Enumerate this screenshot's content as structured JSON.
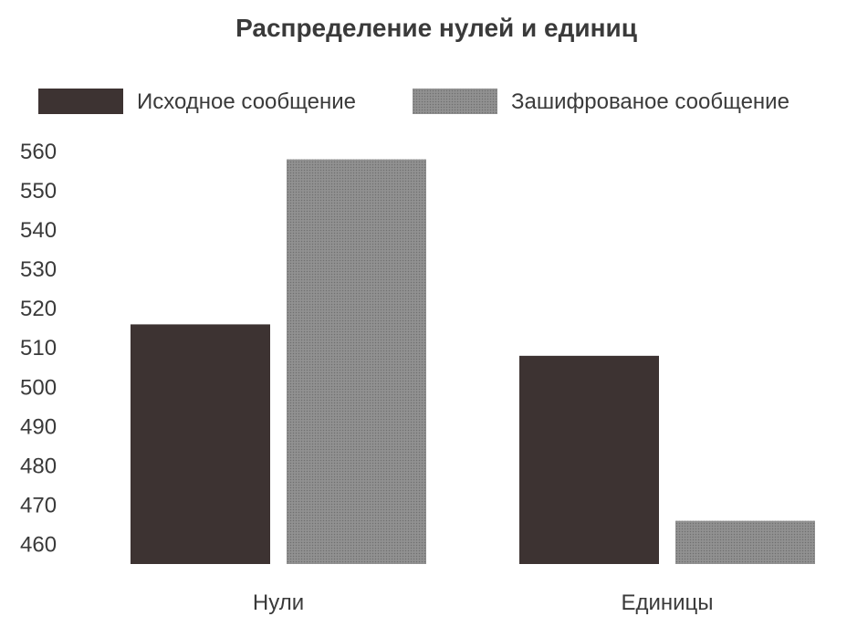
{
  "chart_data": {
    "type": "bar",
    "title": "Распределение нулей и единиц",
    "xlabel": "",
    "ylabel": "",
    "categories": [
      "Нули",
      "Единицы"
    ],
    "series": [
      {
        "name": "Исходное сообщение",
        "values": [
          516,
          508
        ],
        "color": "#3d3332",
        "fill": "solid"
      },
      {
        "name": "Зашифрованое сообщение",
        "values": [
          558,
          466
        ],
        "color": "#878787",
        "fill": "dotted"
      }
    ],
    "yticks": [
      "560",
      "550",
      "540",
      "530",
      "520",
      "510",
      "500",
      "490",
      "480",
      "470",
      "460"
    ],
    "ylim": [
      455,
      560
    ],
    "grid": false,
    "legend": "top"
  }
}
